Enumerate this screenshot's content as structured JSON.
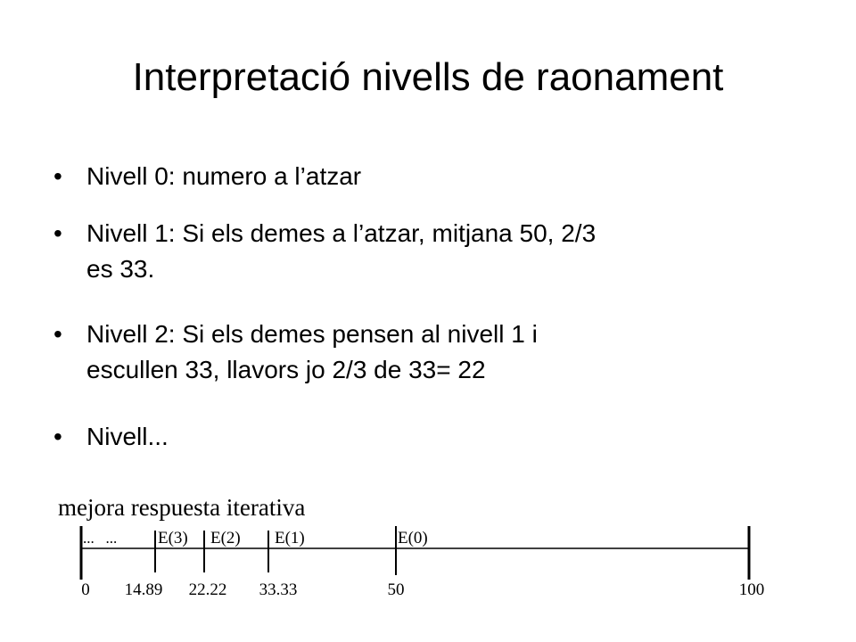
{
  "title": "Interpretació nivells de raonament",
  "bullets": [
    {
      "lines": [
        "Nivell 0: numero a l’atzar"
      ]
    },
    {
      "lines": [
        "Nivell 1: Si els demes a l’atzar, mitjana 50, 2/3",
        "es 33."
      ]
    },
    {
      "lines": [
        "Nivell 2: Si els demes pensen al nivell 1 i",
        "escullen 33, llavors jo 2/3 de 33= 22"
      ]
    },
    {
      "lines": [
        "Nivell..."
      ]
    }
  ],
  "diagram": {
    "label": "mejora respuesta iterativa",
    "segments": [
      "...   ...",
      "E(3)",
      "E(2)",
      "E(1)",
      "E(0)"
    ],
    "ticks": [
      "0",
      "14.89",
      "22.22",
      "33.33",
      "50",
      "100"
    ]
  }
}
